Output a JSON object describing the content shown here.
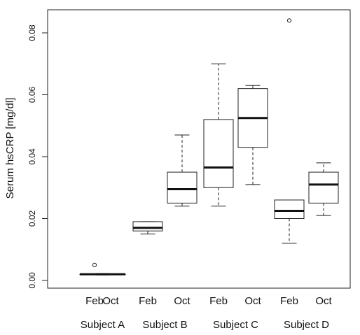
{
  "chart_data": {
    "type": "boxplot",
    "title": "",
    "xlabel": "",
    "ylabel": "Serum hsCRP [mg/dl]",
    "ylim": [
      -0.001,
      0.088
    ],
    "yticks": [
      "0.00",
      "0.02",
      "0.04",
      "0.06",
      "0.08"
    ],
    "ytick_values": [
      0.0,
      0.02,
      0.04,
      0.06,
      0.08
    ],
    "grid": false,
    "categories": [
      "Feb",
      "Oct",
      "Feb",
      "Oct",
      "Feb",
      "Oct",
      "Feb",
      "Oct"
    ],
    "groups": [
      "Subject A",
      "Subject B",
      "Subject C",
      "Subject D"
    ],
    "boxes": [
      {
        "group": "Subject A",
        "month": "Feb",
        "whisker_low": 0.002,
        "q1": 0.002,
        "median": 0.002,
        "q3": 0.002,
        "whisker_high": 0.002,
        "outliers": [
          0.005
        ]
      },
      {
        "group": "Subject A",
        "month": "Oct",
        "whisker_low": 0.002,
        "q1": 0.002,
        "median": 0.002,
        "q3": 0.002,
        "whisker_high": 0.002,
        "outliers": []
      },
      {
        "group": "Subject B",
        "month": "Feb",
        "whisker_low": 0.015,
        "q1": 0.016,
        "median": 0.017,
        "q3": 0.019,
        "whisker_high": 0.019,
        "outliers": []
      },
      {
        "group": "Subject B",
        "month": "Oct",
        "whisker_low": 0.024,
        "q1": 0.025,
        "median": 0.0295,
        "q3": 0.035,
        "whisker_high": 0.047,
        "outliers": []
      },
      {
        "group": "Subject C",
        "month": "Feb",
        "whisker_low": 0.024,
        "q1": 0.03,
        "median": 0.0365,
        "q3": 0.052,
        "whisker_high": 0.07,
        "outliers": []
      },
      {
        "group": "Subject C",
        "month": "Oct",
        "whisker_low": 0.031,
        "q1": 0.043,
        "median": 0.0525,
        "q3": 0.062,
        "whisker_high": 0.063,
        "outliers": []
      },
      {
        "group": "Subject D",
        "month": "Feb",
        "whisker_low": 0.012,
        "q1": 0.02,
        "median": 0.0225,
        "q3": 0.026,
        "whisker_high": 0.026,
        "outliers": [
          0.084
        ]
      },
      {
        "group": "Subject D",
        "month": "Oct",
        "whisker_low": 0.021,
        "q1": 0.025,
        "median": 0.031,
        "q3": 0.035,
        "whisker_high": 0.038,
        "outliers": []
      }
    ]
  }
}
